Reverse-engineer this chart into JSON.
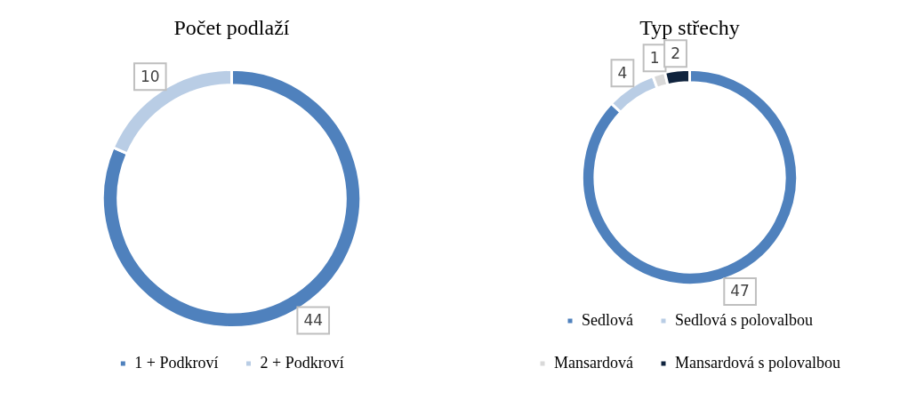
{
  "chart_data": [
    {
      "type": "donut",
      "title": "Počet podlaží",
      "categories": [
        "1 + Podkroví",
        "2 + Podkroví"
      ],
      "values": [
        44,
        10
      ],
      "colors": [
        "#4f81bd",
        "#b9cde5"
      ],
      "data_labels": true,
      "legend": "bottom"
    },
    {
      "type": "donut",
      "title": "Typ střechy",
      "categories": [
        "Sedlová",
        "Sedlová s polovalbou",
        "Mansardová",
        "Mansardová s polovalbou"
      ],
      "values": [
        47,
        4,
        1,
        2
      ],
      "colors": [
        "#4f81bd",
        "#b9cde5",
        "#d9d9d9",
        "#10243e"
      ],
      "data_labels": true,
      "legend": "bottom"
    }
  ]
}
